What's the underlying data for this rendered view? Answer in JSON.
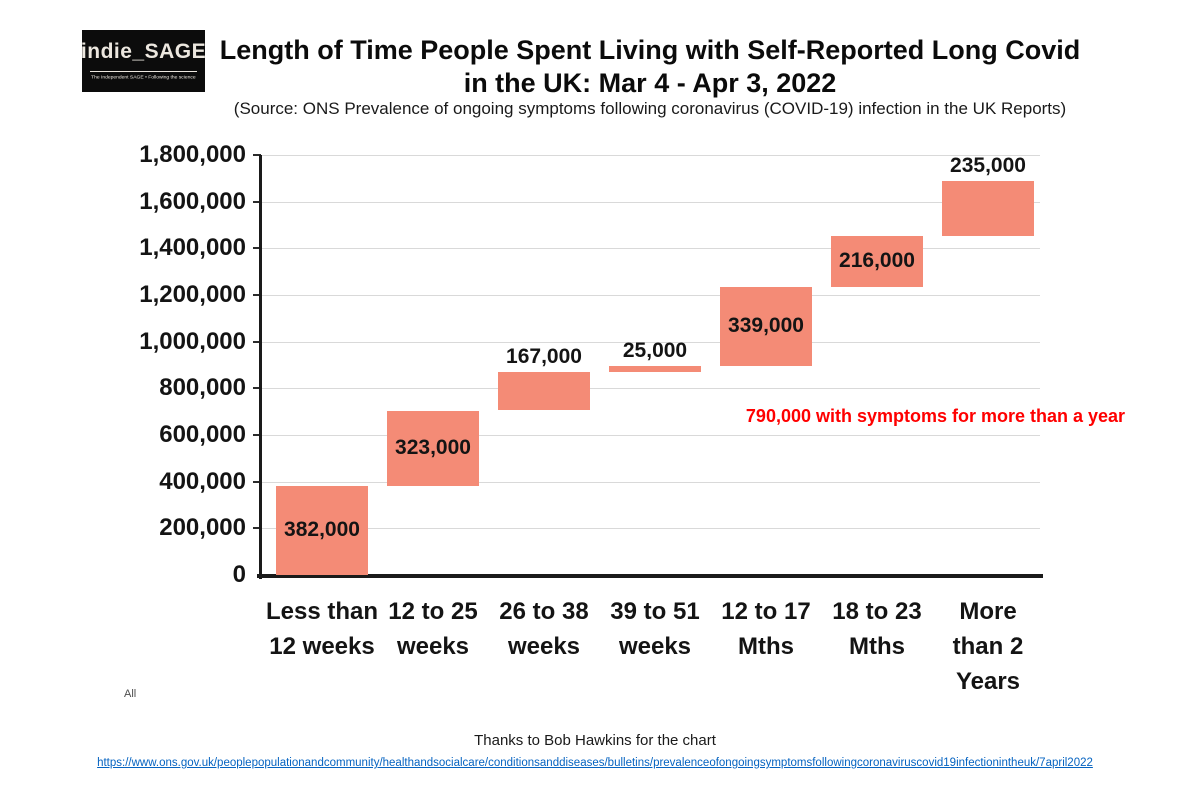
{
  "logo": {
    "brand": "indie_SAGE",
    "tagline": "The Independent SAGE • Following the science"
  },
  "header": {
    "title_line1": "Length of Time People Spent Living with Self-Reported Long Covid",
    "title_line2": "in the UK: Mar 4 - Apr 3, 2022",
    "source": "(Source: ONS Prevalence of ongoing symptoms following coronavirus (COVID-19) infection in the UK Reports)"
  },
  "chart_data": {
    "type": "bar",
    "subtype": "waterfall",
    "categories": [
      "Less than 12 weeks",
      "12 to 25 weeks",
      "26 to 38 weeks",
      "39 to 51 weeks",
      "12 to 17 Mths",
      "18 to 23 Mths",
      "More than 2 Years"
    ],
    "category_lines": [
      [
        "Less than",
        "12 weeks"
      ],
      [
        "12 to 25",
        "weeks"
      ],
      [
        "26 to 38",
        "weeks"
      ],
      [
        "39 to 51",
        "weeks"
      ],
      [
        "12 to 17",
        "Mths"
      ],
      [
        "18 to 23",
        "Mths"
      ],
      [
        "More",
        "than 2",
        "Years"
      ]
    ],
    "values": [
      382000,
      323000,
      167000,
      25000,
      339000,
      216000,
      235000
    ],
    "cumulative_start": [
      0,
      382000,
      705000,
      872000,
      897000,
      1236000,
      1452000
    ],
    "bar_labels": [
      "382,000",
      "323,000",
      "167,000",
      "25,000",
      "339,000",
      "216,000",
      "235,000"
    ],
    "label_placement": [
      "inside",
      "inside",
      "above",
      "above",
      "inside",
      "inside",
      "above"
    ],
    "y_tick_labels": [
      "0",
      "200,000",
      "400,000",
      "600,000",
      "800,000",
      "1,000,000",
      "1,200,000",
      "1,400,000",
      "1,600,000",
      "1,800,000"
    ],
    "ylim": [
      0,
      1800000
    ],
    "y_step": 200000,
    "grid": true,
    "bar_color": "#f48b76",
    "annotation": "790,000 with symptoms for more than a year",
    "annotation_color": "#ff0000"
  },
  "footer": {
    "all_label": "All",
    "credit": "Thanks to Bob Hawkins for the chart",
    "link": "https://www.ons.gov.uk/peoplepopulationandcommunity/healthandsocialcare/conditionsanddiseases/bulletins/prevalenceofongoingsymptomsfollowingcoronaviruscovid19infectionintheuk/7april2022"
  }
}
